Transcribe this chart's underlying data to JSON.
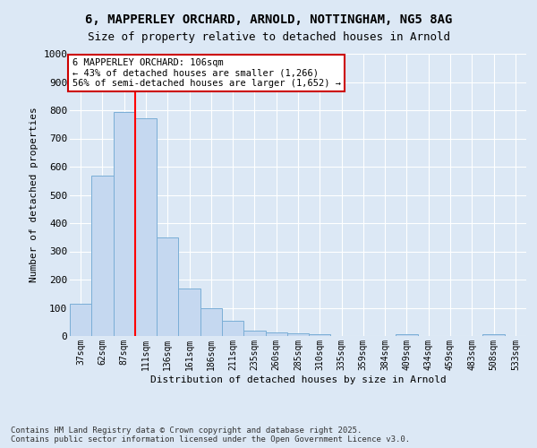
{
  "title_line1": "6, MAPPERLEY ORCHARD, ARNOLD, NOTTINGHAM, NG5 8AG",
  "title_line2": "Size of property relative to detached houses in Arnold",
  "xlabel": "Distribution of detached houses by size in Arnold",
  "ylabel": "Number of detached properties",
  "categories": [
    "37sqm",
    "62sqm",
    "87sqm",
    "111sqm",
    "136sqm",
    "161sqm",
    "186sqm",
    "211sqm",
    "235sqm",
    "260sqm",
    "285sqm",
    "310sqm",
    "335sqm",
    "359sqm",
    "384sqm",
    "409sqm",
    "434sqm",
    "459sqm",
    "483sqm",
    "508sqm",
    "533sqm"
  ],
  "values": [
    113,
    568,
    793,
    770,
    350,
    168,
    98,
    53,
    18,
    12,
    8,
    5,
    0,
    0,
    0,
    5,
    0,
    0,
    0,
    5,
    0
  ],
  "bar_color": "#c5d8f0",
  "bar_edge_color": "#7aaed6",
  "red_line_index": 3,
  "annotation_line1": "6 MAPPERLEY ORCHARD: 106sqm",
  "annotation_line2": "← 43% of detached houses are smaller (1,266)",
  "annotation_line3": "56% of semi-detached houses are larger (1,652) →",
  "annotation_box_color": "#ffffff",
  "annotation_border_color": "#cc0000",
  "ylim": [
    0,
    1000
  ],
  "yticks": [
    0,
    100,
    200,
    300,
    400,
    500,
    600,
    700,
    800,
    900,
    1000
  ],
  "background_color": "#dce8f5",
  "grid_color": "#ffffff",
  "footer_line1": "Contains HM Land Registry data © Crown copyright and database right 2025.",
  "footer_line2": "Contains public sector information licensed under the Open Government Licence v3.0."
}
